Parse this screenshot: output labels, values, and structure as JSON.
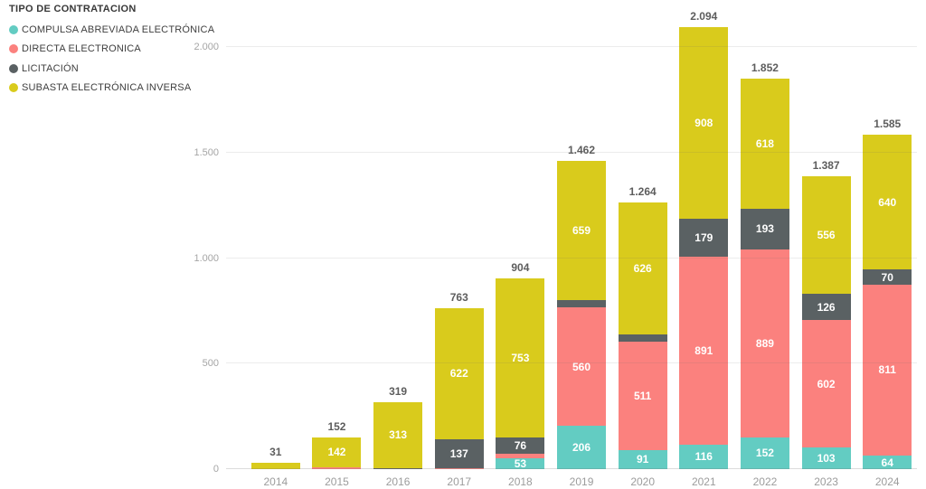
{
  "legend": {
    "title": "TIPO DE CONTRATACION",
    "items": [
      {
        "label": "COMPULSA ABREVIADA ELECTRÓNICA",
        "color": "#63CCC2"
      },
      {
        "label": "DIRECTA ELECTRONICA",
        "color": "#FB817E"
      },
      {
        "label": "LICITACIÓN",
        "color": "#5A6163"
      },
      {
        "label": "SUBASTA ELECTRÓNICA INVERSA",
        "color": "#D9CB1C"
      }
    ]
  },
  "chart_data": {
    "type": "bar",
    "stacked": true,
    "title": "TIPO DE CONTRATACION",
    "xlabel": "",
    "ylabel": "",
    "categories": [
      "2014",
      "2015",
      "2016",
      "2017",
      "2018",
      "2019",
      "2020",
      "2021",
      "2022",
      "2023",
      "2024"
    ],
    "series": [
      {
        "name": "COMPULSA ABREVIADA ELECTRÓNICA",
        "color": "#63CCC2",
        "values": [
          0,
          0,
          0,
          0,
          53,
          206,
          91,
          116,
          152,
          103,
          64
        ]
      },
      {
        "name": "DIRECTA ELECTRONICA",
        "color": "#FB817E",
        "values": [
          0,
          10,
          0,
          4,
          22,
          560,
          511,
          891,
          889,
          602,
          811
        ]
      },
      {
        "name": "LICITACIÓN",
        "color": "#5A6163",
        "values": [
          0,
          0,
          6,
          137,
          76,
          37,
          36,
          179,
          193,
          126,
          70
        ]
      },
      {
        "name": "SUBASTA ELECTRÓNICA INVERSA",
        "color": "#D9CB1C",
        "values": [
          31,
          142,
          313,
          622,
          753,
          659,
          626,
          908,
          618,
          556,
          640
        ]
      }
    ],
    "totals": [
      31,
      152,
      319,
      763,
      904,
      1462,
      1264,
      2094,
      1852,
      1387,
      1585
    ],
    "total_labels": [
      "31",
      "152",
      "319",
      "763",
      "904",
      "1.462",
      "1.264",
      "2.094",
      "1.852",
      "1.387",
      "1.585"
    ],
    "segment_label_min_value": 50,
    "y_ticks": [
      "0",
      "500",
      "1.000",
      "1.500",
      "2.000"
    ],
    "ylim": [
      0,
      2000
    ],
    "grid": true,
    "legend_position": "top-left"
  }
}
